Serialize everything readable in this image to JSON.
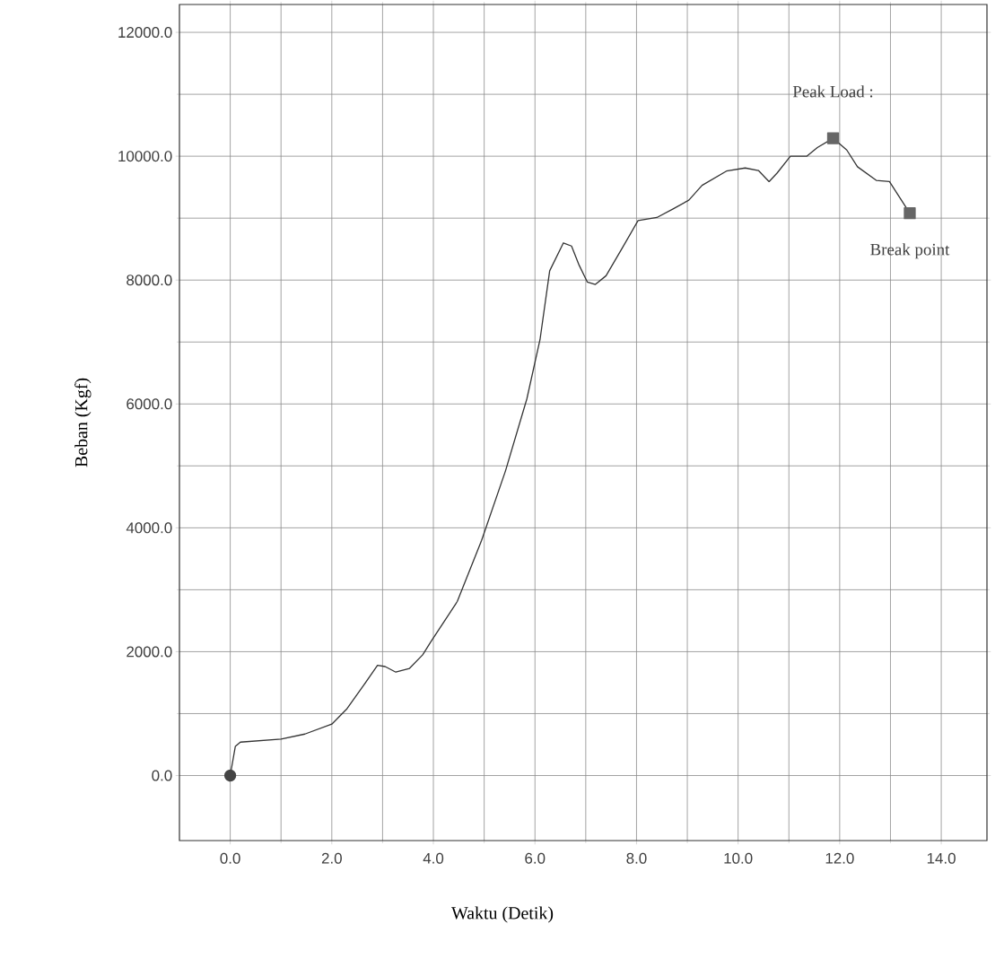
{
  "chart_data": {
    "type": "line",
    "xlabel": "Waktu (Detik)",
    "ylabel": "Beban (Kgf)",
    "xlim": [
      -1,
      14.9
    ],
    "ylim": [
      -1050,
      12450
    ],
    "xticks": [
      {
        "value": 0,
        "label": "0.0"
      },
      {
        "value": 2,
        "label": "2.0"
      },
      {
        "value": 4,
        "label": "4.0"
      },
      {
        "value": 6,
        "label": "6.0"
      },
      {
        "value": 8,
        "label": "8.0"
      },
      {
        "value": 10,
        "label": "10.0"
      },
      {
        "value": 12,
        "label": "12.0"
      },
      {
        "value": 14,
        "label": "14.0"
      }
    ],
    "yticks": [
      {
        "value": 0,
        "label": "0.0"
      },
      {
        "value": 2000,
        "label": "2000.0"
      },
      {
        "value": 4000,
        "label": "4000.0"
      },
      {
        "value": 6000,
        "label": "6000.0"
      },
      {
        "value": 8000,
        "label": "8000.0"
      },
      {
        "value": 10000,
        "label": "10000.0"
      },
      {
        "value": 12000,
        "label": "12000.0"
      }
    ],
    "grid": true,
    "series": [
      {
        "color": "#333333",
        "marker": "none",
        "x": [
          0,
          0.1,
          0.2,
          1.0,
          1.47,
          2.0,
          2.3,
          2.63,
          2.9,
          3.05,
          3.26,
          3.53,
          3.79,
          3.95,
          4.47,
          4.95,
          5.42,
          5.84,
          6.1,
          6.29,
          6.56,
          6.72,
          6.87,
          7.03,
          7.19,
          7.4,
          7.72,
          8.03,
          8.4,
          8.72,
          9.03,
          9.29,
          9.77,
          10.14,
          10.4,
          10.61,
          10.77,
          11.03,
          11.35,
          11.56,
          11.87,
          12.14,
          12.35,
          12.72,
          12.98,
          13.38
        ],
        "values": [
          0,
          470,
          540,
          590,
          670,
          830,
          1080,
          1460,
          1780,
          1760,
          1670,
          1730,
          1950,
          2160,
          2810,
          3800,
          4920,
          6080,
          7040,
          8150,
          8600,
          8550,
          8240,
          7970,
          7930,
          8070,
          8520,
          8960,
          9010,
          9150,
          9290,
          9530,
          9760,
          9810,
          9770,
          9590,
          9730,
          10000,
          10000,
          10140,
          10290,
          10100,
          9830,
          9610,
          9590,
          9080
        ]
      },
      {
        "type": "scatter",
        "color": "#444444",
        "marker": "circle",
        "x": [
          0
        ],
        "values": [
          0
        ]
      },
      {
        "type": "scatter",
        "color": "#666666",
        "marker": "square",
        "x": [
          11.87,
          13.38
        ],
        "values": [
          10290,
          9080
        ]
      }
    ],
    "annotations": [
      {
        "text": "Peak Load :",
        "x": 11.87,
        "y": 10290
      },
      {
        "text": "Break point",
        "x": 13.38,
        "y": 9080
      }
    ]
  }
}
